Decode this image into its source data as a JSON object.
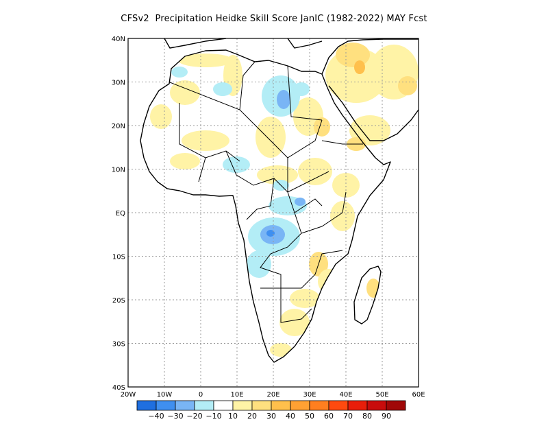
{
  "title": "CFSv2  Precipitation Heidke Skill Score JanIC (1982-2022) MAY Fcst",
  "map": {
    "lon_range": [
      -20,
      60
    ],
    "lat_range": [
      -40,
      40
    ],
    "lat_labels": [
      {
        "lat": 40,
        "text": "40N"
      },
      {
        "lat": 30,
        "text": "30N"
      },
      {
        "lat": 20,
        "text": "20N"
      },
      {
        "lat": 10,
        "text": "10N"
      },
      {
        "lat": 0,
        "text": "EQ"
      },
      {
        "lat": -10,
        "text": "10S"
      },
      {
        "lat": -20,
        "text": "20S"
      },
      {
        "lat": -30,
        "text": "30S"
      },
      {
        "lat": -40,
        "text": "40S"
      }
    ],
    "lon_labels": [
      {
        "lon": -20,
        "text": "20W"
      },
      {
        "lon": -10,
        "text": "10W"
      },
      {
        "lon": 0,
        "text": "0"
      },
      {
        "lon": 10,
        "text": "10E"
      },
      {
        "lon": 20,
        "text": "20E"
      },
      {
        "lon": 30,
        "text": "30E"
      },
      {
        "lon": 40,
        "text": "40E"
      },
      {
        "lon": 50,
        "text": "50E"
      },
      {
        "lon": 60,
        "text": "60E"
      }
    ],
    "grid": "dotted"
  },
  "colorbar": {
    "colors": [
      "#1f6fe0",
      "#3f8ff0",
      "#79b5f5",
      "#b3edf6",
      "#ffffff",
      "#fff3a6",
      "#ffe07f",
      "#ffc04c",
      "#ffa133",
      "#ff7f1f",
      "#ff4a0f",
      "#e81e0a",
      "#c80c0c",
      "#a00808"
    ],
    "labels": [
      "-40",
      "-30",
      "-20",
      "-10",
      "10",
      "20",
      "30",
      "40",
      "50",
      "60",
      "70",
      "80",
      "90"
    ]
  }
}
